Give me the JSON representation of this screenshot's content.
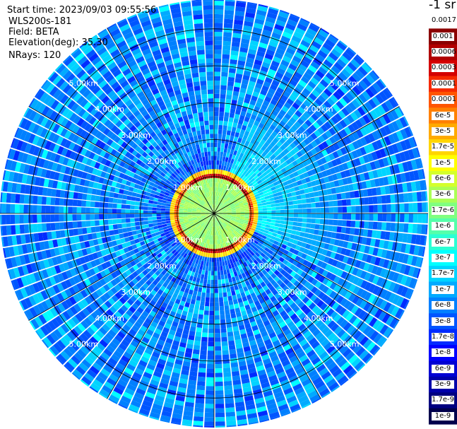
{
  "info": {
    "start_time": "Start time: 2023/09/03 09:55:56",
    "instrument": "WLS200s-181",
    "field": "Field: BETA",
    "elevation": "Elevation(deg): 35.30",
    "nrays": "NRays: 120"
  },
  "colorbar": {
    "unit": "-1 sr",
    "ticks": [
      "0.0017",
      "0.001",
      "0.0006",
      "0.0003",
      "0.00017",
      "0.0001",
      "6e-5",
      "3e-5",
      "1.7e-5",
      "1e-5",
      "6e-6",
      "3e-6",
      "1.7e-6",
      "1e-6",
      "6e-7",
      "3e-7",
      "1.7e-7",
      "1e-7",
      "6e-8",
      "3e-8",
      "1.7e-8",
      "1e-8",
      "6e-9",
      "3e-9",
      "1.7e-9",
      "1e-9"
    ],
    "colors": [
      "#ffffff",
      "#8b0000",
      "#b00000",
      "#d40000",
      "#f52a00",
      "#ff5500",
      "#ff8000",
      "#ffaa00",
      "#ffd500",
      "#ffff00",
      "#d4ff2b",
      "#aaff55",
      "#80ff80",
      "#55ffaa",
      "#2bffd4",
      "#00ffff",
      "#00d4ff",
      "#00aaff",
      "#0080ff",
      "#0055ff",
      "#002bff",
      "#0000ff",
      "#0000d4",
      "#0000aa",
      "#000080",
      "#00004c"
    ]
  },
  "chart_data": {
    "type": "heatmap",
    "projection": "polar (PPI scan)",
    "nrays": 120,
    "max_range_km": 5.8,
    "range_ring_km": [
      1.0,
      2.0,
      3.0,
      4.0,
      5.0
    ],
    "range_ring_labels": [
      "1.00km",
      "2.00km",
      "3.00km",
      "4.00km",
      "5.00km"
    ],
    "azimuth_lines_deg": [
      0,
      30,
      60,
      90,
      120,
      150,
      180,
      210,
      240,
      270,
      300,
      330
    ],
    "field_levels": {
      "near_field_0_to_0.9km": "1.7e-6 to 1e-5",
      "aerosol_ring_1.0_to_1.2km": "1e-4 to 0.0006",
      "east_sector_plume_az_20_to_110": "1.7e-7 to 1.7e-6",
      "background_beyond_1.5km": "3e-9 to 1e-7"
    },
    "colorbar_range": [
      1e-09,
      0.0017
    ],
    "colorbar_scale": "log"
  }
}
